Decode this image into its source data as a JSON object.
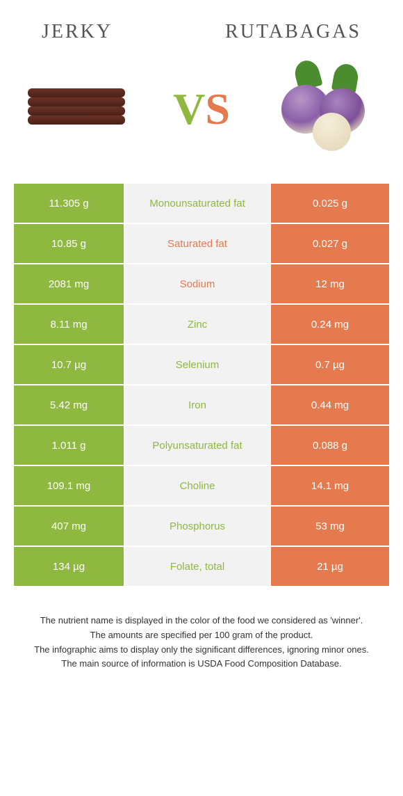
{
  "header": {
    "left_title": "Jerky",
    "right_title": "Rutabagas",
    "vs_v": "V",
    "vs_s": "S"
  },
  "colors": {
    "left_food": "#8fb840",
    "right_food": "#e67a4f",
    "mid_bg": "#f2f2f2",
    "page_bg": "#ffffff",
    "text": "#333333"
  },
  "table": {
    "rows": [
      {
        "left": "11.305 g",
        "nutrient": "Monounsaturated fat",
        "right": "0.025 g",
        "winner": "left"
      },
      {
        "left": "10.85 g",
        "nutrient": "Saturated fat",
        "right": "0.027 g",
        "winner": "right"
      },
      {
        "left": "2081 mg",
        "nutrient": "Sodium",
        "right": "12 mg",
        "winner": "right"
      },
      {
        "left": "8.11 mg",
        "nutrient": "Zinc",
        "right": "0.24 mg",
        "winner": "left"
      },
      {
        "left": "10.7 µg",
        "nutrient": "Selenium",
        "right": "0.7 µg",
        "winner": "left"
      },
      {
        "left": "5.42 mg",
        "nutrient": "Iron",
        "right": "0.44 mg",
        "winner": "left"
      },
      {
        "left": "1.011 g",
        "nutrient": "Polyunsaturated fat",
        "right": "0.088 g",
        "winner": "left"
      },
      {
        "left": "109.1 mg",
        "nutrient": "Choline",
        "right": "14.1 mg",
        "winner": "left"
      },
      {
        "left": "407 mg",
        "nutrient": "Phosphorus",
        "right": "53 mg",
        "winner": "left"
      },
      {
        "left": "134 µg",
        "nutrient": "Folate, total",
        "right": "21 µg",
        "winner": "left"
      }
    ]
  },
  "footer": {
    "line1": "The nutrient name is displayed in the color of the food we considered as 'winner'.",
    "line2": "The amounts are specified per 100 gram of the product.",
    "line3": "The infographic aims to display only the significant differences, ignoring minor ones.",
    "line4": "The main source of information is USDA Food Composition Database."
  }
}
